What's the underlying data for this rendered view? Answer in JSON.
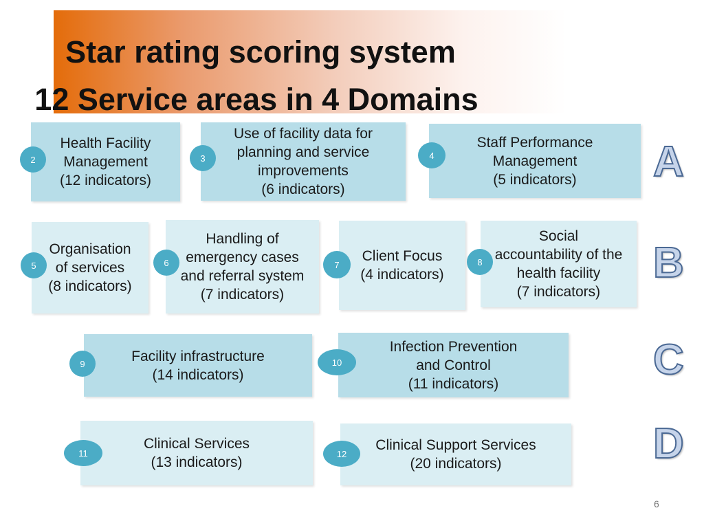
{
  "title": {
    "line1": "Star rating scoring system",
    "line2": "12 Service areas in 4 Domains"
  },
  "domains": [
    "A",
    "B",
    "C",
    "D"
  ],
  "areas": {
    "a2": {
      "num": "2",
      "text": "Health Facility\nManagement\n(12 indicators)"
    },
    "a3": {
      "num": "3",
      "text": "Use of facility data for\nplanning and service\nimprovements\n(6 indicators)"
    },
    "a4": {
      "num": "4",
      "text": "Staff Performance\nManagement\n(5 indicators)"
    },
    "a5": {
      "num": "5",
      "text": "Organisation\nof services\n(8 indicators)"
    },
    "a6": {
      "num": "6",
      "text": "Handling of\nemergency cases\nand referral system\n(7 indicators)"
    },
    "a7": {
      "num": "7",
      "text": "Client Focus\n(4 indicators)"
    },
    "a8": {
      "num": "8",
      "text": "Social\naccountability of the\nhealth facility\n(7 indicators)"
    },
    "a9": {
      "num": "9",
      "text": "Facility infrastructure\n(14 indicators)"
    },
    "a10": {
      "num": "10",
      "text": "Infection Prevention\nand Control\n(11 indicators)"
    },
    "a11": {
      "num": "11",
      "text": "Clinical Services\n(13 indicators)"
    },
    "a12": {
      "num": "12",
      "text": "Clinical Support Services\n(20 indicators)"
    }
  },
  "page_number": "6",
  "colors": {
    "box_dark": "#b7dde8",
    "box_light": "#daeef3",
    "badge": "#4bacc6",
    "banner_start": "#e46c0a"
  }
}
